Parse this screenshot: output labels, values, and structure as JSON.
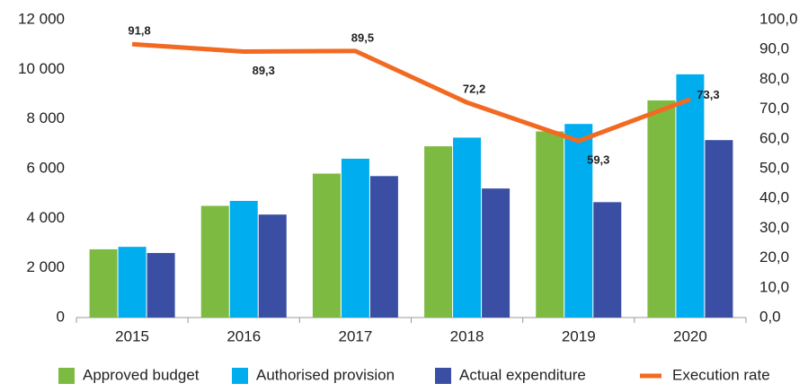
{
  "chart_data": {
    "type": "bar",
    "categories": [
      "2015",
      "2016",
      "2017",
      "2018",
      "2019",
      "2020"
    ],
    "series": [
      {
        "name": "Approved budget",
        "color": "#7dba42",
        "values": [
          2750,
          4500,
          5800,
          6900,
          7500,
          8750
        ]
      },
      {
        "name": "Authorised provision",
        "color": "#00aeef",
        "values": [
          2850,
          4700,
          6400,
          7250,
          7800,
          9800
        ]
      },
      {
        "name": "Actual expenditure",
        "color": "#3a4fa3",
        "values": [
          2600,
          4150,
          5700,
          5200,
          4650,
          7150
        ]
      },
      {
        "name": "Execution rate",
        "color": "#f26a21",
        "type": "line",
        "axis": "y2",
        "values": [
          91.8,
          89.3,
          89.5,
          72.2,
          59.3,
          73.3
        ],
        "value_labels": [
          "91,8",
          "89,3",
          "89,5",
          "72,2",
          "59,3",
          "73,3"
        ]
      }
    ],
    "ylim": [
      0,
      12000
    ],
    "yticks": [
      0,
      {
        "value": 2000,
        "label": "2 000"
      },
      {
        "value": 4000,
        "label": "4 000"
      },
      {
        "value": 6000,
        "label": "6 000"
      },
      {
        "value": 8000,
        "label": "8 000"
      },
      {
        "value": 10000,
        "label": "10 000"
      },
      {
        "value": 12000,
        "label": "12 000"
      }
    ],
    "y2lim": [
      0,
      100
    ],
    "y2ticks": [
      {
        "value": 0,
        "label": "0,0"
      },
      {
        "value": 10,
        "label": "10,0"
      },
      {
        "value": 20,
        "label": "20,0"
      },
      {
        "value": 30,
        "label": "30,0"
      },
      {
        "value": 40,
        "label": "40,0"
      },
      {
        "value": 50,
        "label": "50,0"
      },
      {
        "value": 60,
        "label": "60,0"
      },
      {
        "value": 70,
        "label": "70,0"
      },
      {
        "value": 80,
        "label": "80,0"
      },
      {
        "value": 90,
        "label": "90,0"
      },
      {
        "value": 100,
        "label": "100,0"
      }
    ],
    "grid": false,
    "legend": "bottom"
  }
}
